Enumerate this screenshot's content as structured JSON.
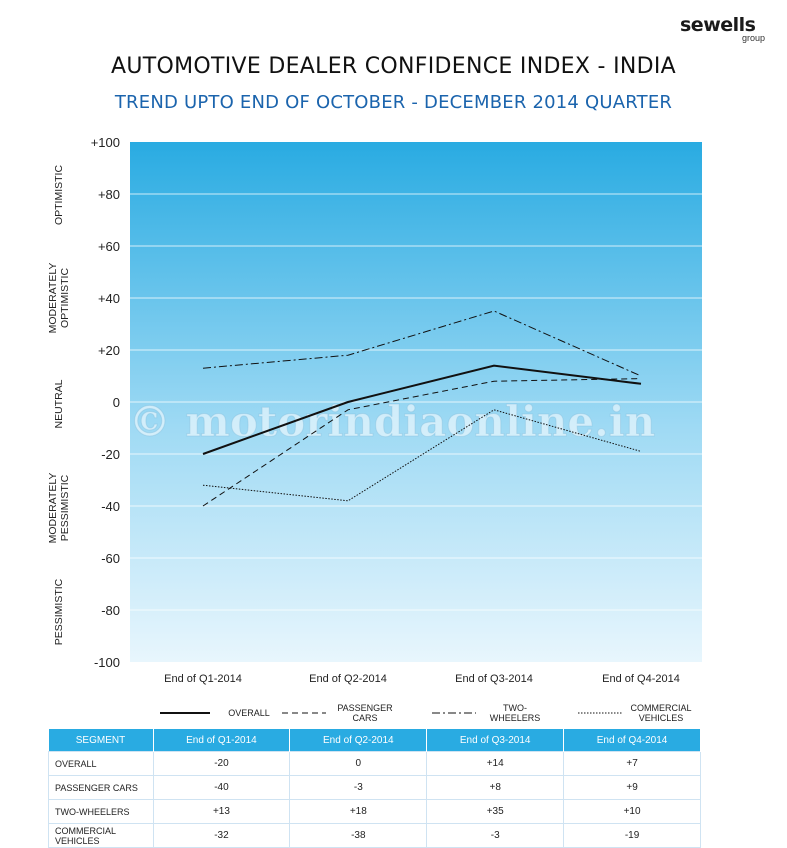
{
  "brand": {
    "name": "sewells",
    "sub": "group"
  },
  "title": "AUTOMOTIVE DEALER CONFIDENCE INDEX - INDIA",
  "subtitle": "TREND UPTO END OF OCTOBER - DECEMBER 2014 QUARTER",
  "watermark": "© motorindiaonline.in",
  "colors": {
    "accent": "#1b64ad",
    "sky_top": "#29abe2",
    "sky_bottom": "#e8f6fd",
    "table_header": "#29abe2"
  },
  "zones": [
    "OPTIMISTIC",
    "MODERATELY OPTIMISTIC",
    "NEUTRAL",
    "MODERATELY PESSIMISTIC",
    "PESSIMISTIC"
  ],
  "chart_data": {
    "type": "line",
    "categories": [
      "End of Q1-2014",
      "End of Q2-2014",
      "End of Q3-2014",
      "End of Q4-2014"
    ],
    "ylim": [
      -100,
      100
    ],
    "yticks": [
      "+100",
      "+80",
      "+60",
      "+40",
      "+20",
      "0",
      "-20",
      "-40",
      "-60",
      "-80",
      "-100"
    ],
    "grid": true,
    "legend_position": "bottom",
    "series": [
      {
        "name": "OVERALL",
        "style": "solid",
        "values": [
          -20,
          0,
          14,
          7
        ]
      },
      {
        "name": "PASSENGER CARS",
        "style": "dashed",
        "values": [
          -40,
          -3,
          8,
          9
        ]
      },
      {
        "name": "TWO-WHEELERS",
        "style": "dashdot",
        "values": [
          13,
          18,
          35,
          10
        ]
      },
      {
        "name": "COMMERCIAL VEHICLES",
        "style": "dotted",
        "values": [
          -32,
          -38,
          -3,
          -19
        ]
      }
    ]
  },
  "legend": [
    {
      "line1": "OVERALL",
      "line2": ""
    },
    {
      "line1": "PASSENGER",
      "line2": "CARS"
    },
    {
      "line1": "TWO-",
      "line2": "WHEELERS"
    },
    {
      "line1": "COMMERCIAL",
      "line2": "VEHICLES"
    }
  ],
  "table": {
    "headers": [
      "SEGMENT",
      "End of Q1-2014",
      "End of Q2-2014",
      "End of Q3-2014",
      "End of Q4-2014"
    ],
    "rows": [
      [
        "OVERALL",
        "-20",
        "0",
        "+14",
        "+7"
      ],
      [
        "PASSENGER CARS",
        "-40",
        "-3",
        "+8",
        "+9"
      ],
      [
        "TWO-WHEELERS",
        "+13",
        "+18",
        "+35",
        "+10"
      ],
      [
        "COMMERCIAL VEHICLES",
        "-32",
        "-38",
        "-3",
        "-19"
      ]
    ]
  }
}
